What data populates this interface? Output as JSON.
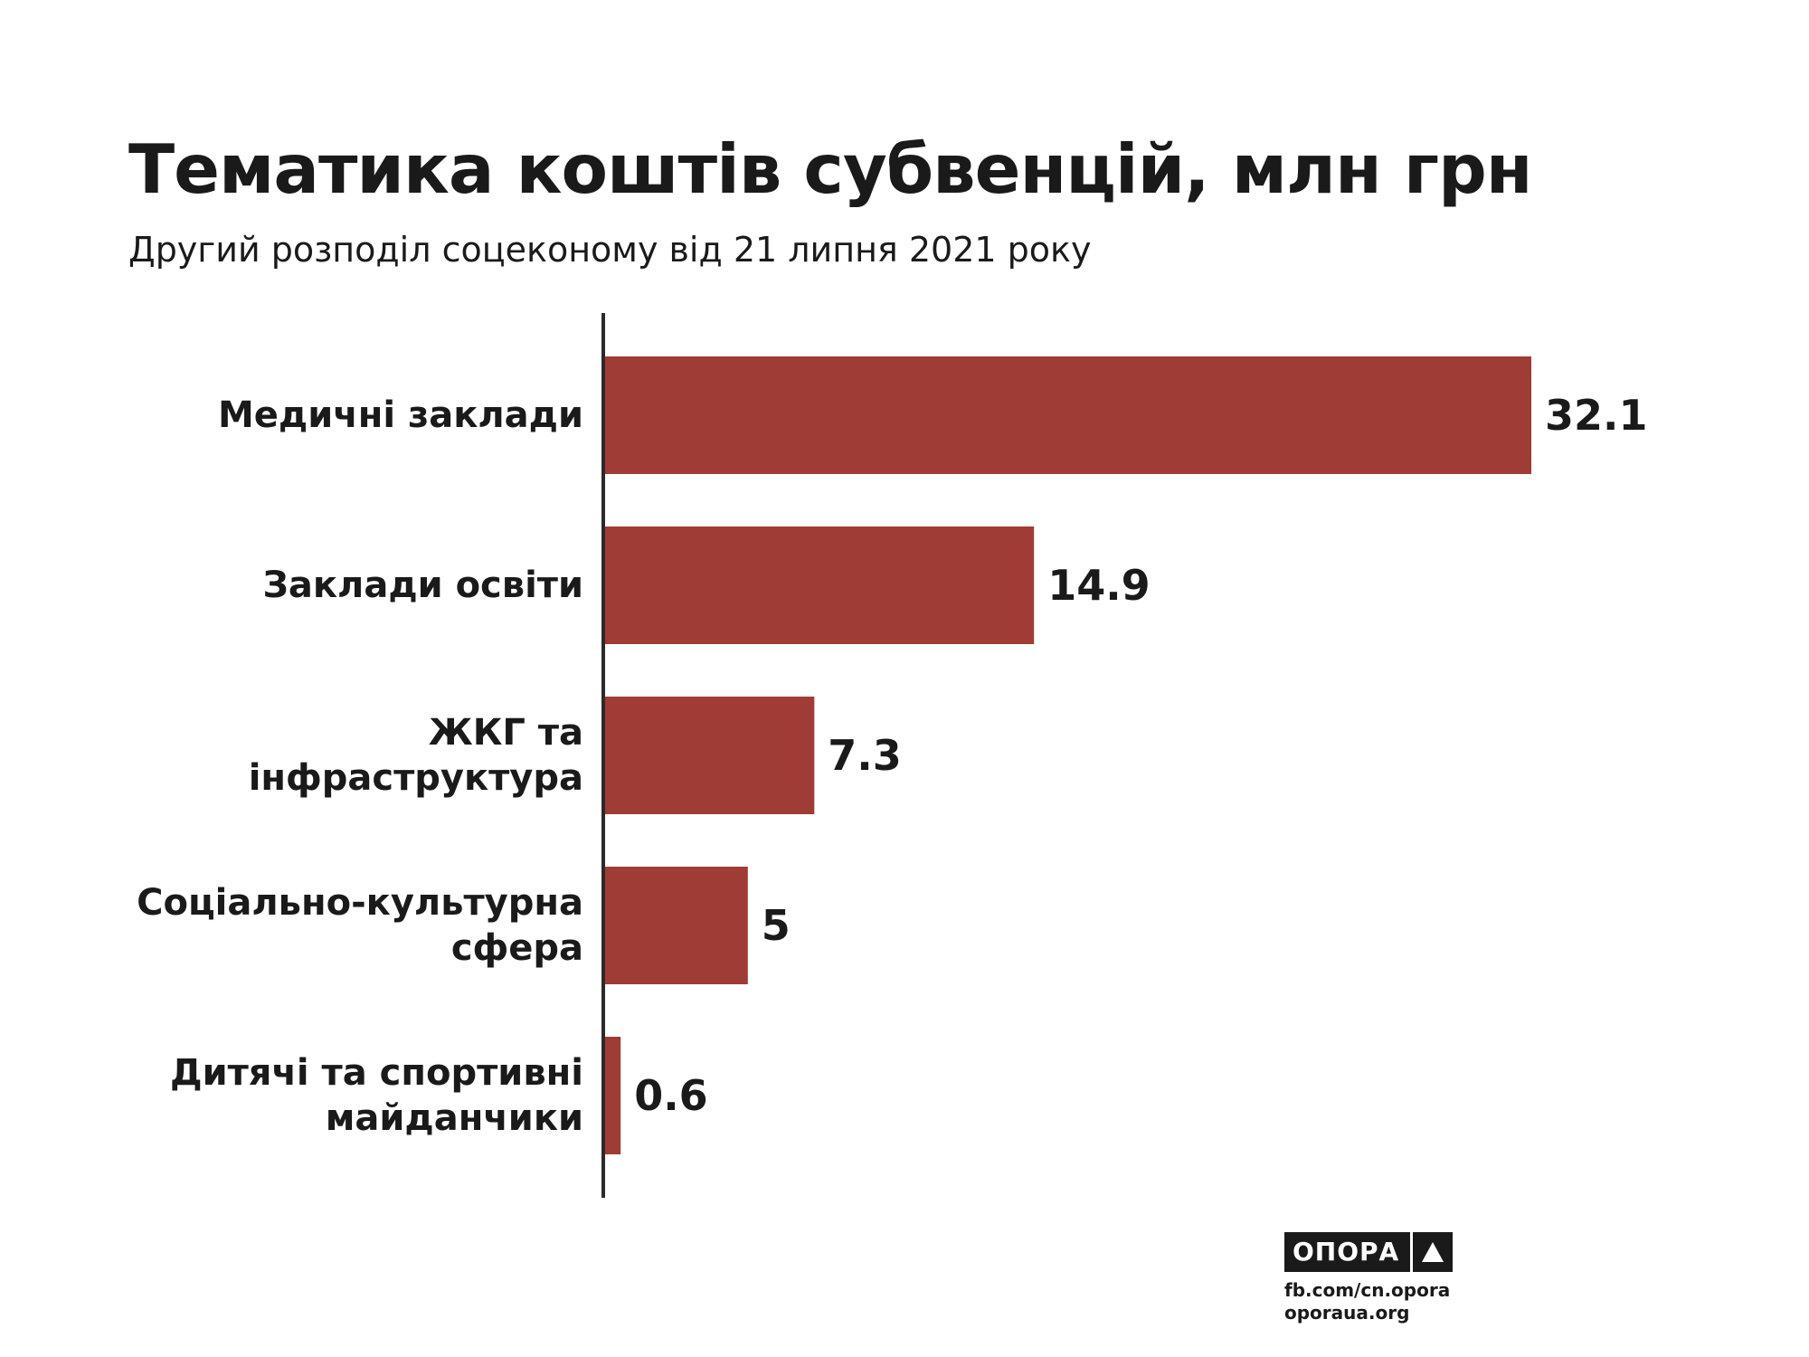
{
  "title": "Тематика коштів субвенцій, млн грн",
  "subtitle": "Другий розподіл соцеконому від 21 липня 2021 року",
  "brand": {
    "name": "ОПОРА",
    "links": [
      "fb.com/cn.opora",
      "oporaua.org"
    ]
  },
  "colors": {
    "bar": "#9e3c35",
    "axis": "#2b2b2b",
    "text": "#1a1a1a"
  },
  "chart_data": {
    "type": "bar",
    "orientation": "horizontal",
    "categories": [
      [
        "Медичні заклади"
      ],
      [
        "Заклади освіти"
      ],
      [
        "ЖКГ та",
        "інфраструктура"
      ],
      [
        "Соціально-культурна",
        "сфера"
      ],
      [
        "Дитячі та спортивні",
        "майданчики"
      ]
    ],
    "values": [
      32.1,
      14.9,
      7.3,
      5,
      0.6
    ],
    "value_labels": [
      "32.1",
      "14.9",
      "7.3",
      "5",
      "0.6"
    ],
    "title": "Тематика коштів субвенцій, млн грн",
    "subtitle": "Другий розподіл соцеконому від 21 липня 2021 року",
    "xlim": [
      0,
      32.1
    ],
    "grid": false,
    "legend": "none"
  }
}
